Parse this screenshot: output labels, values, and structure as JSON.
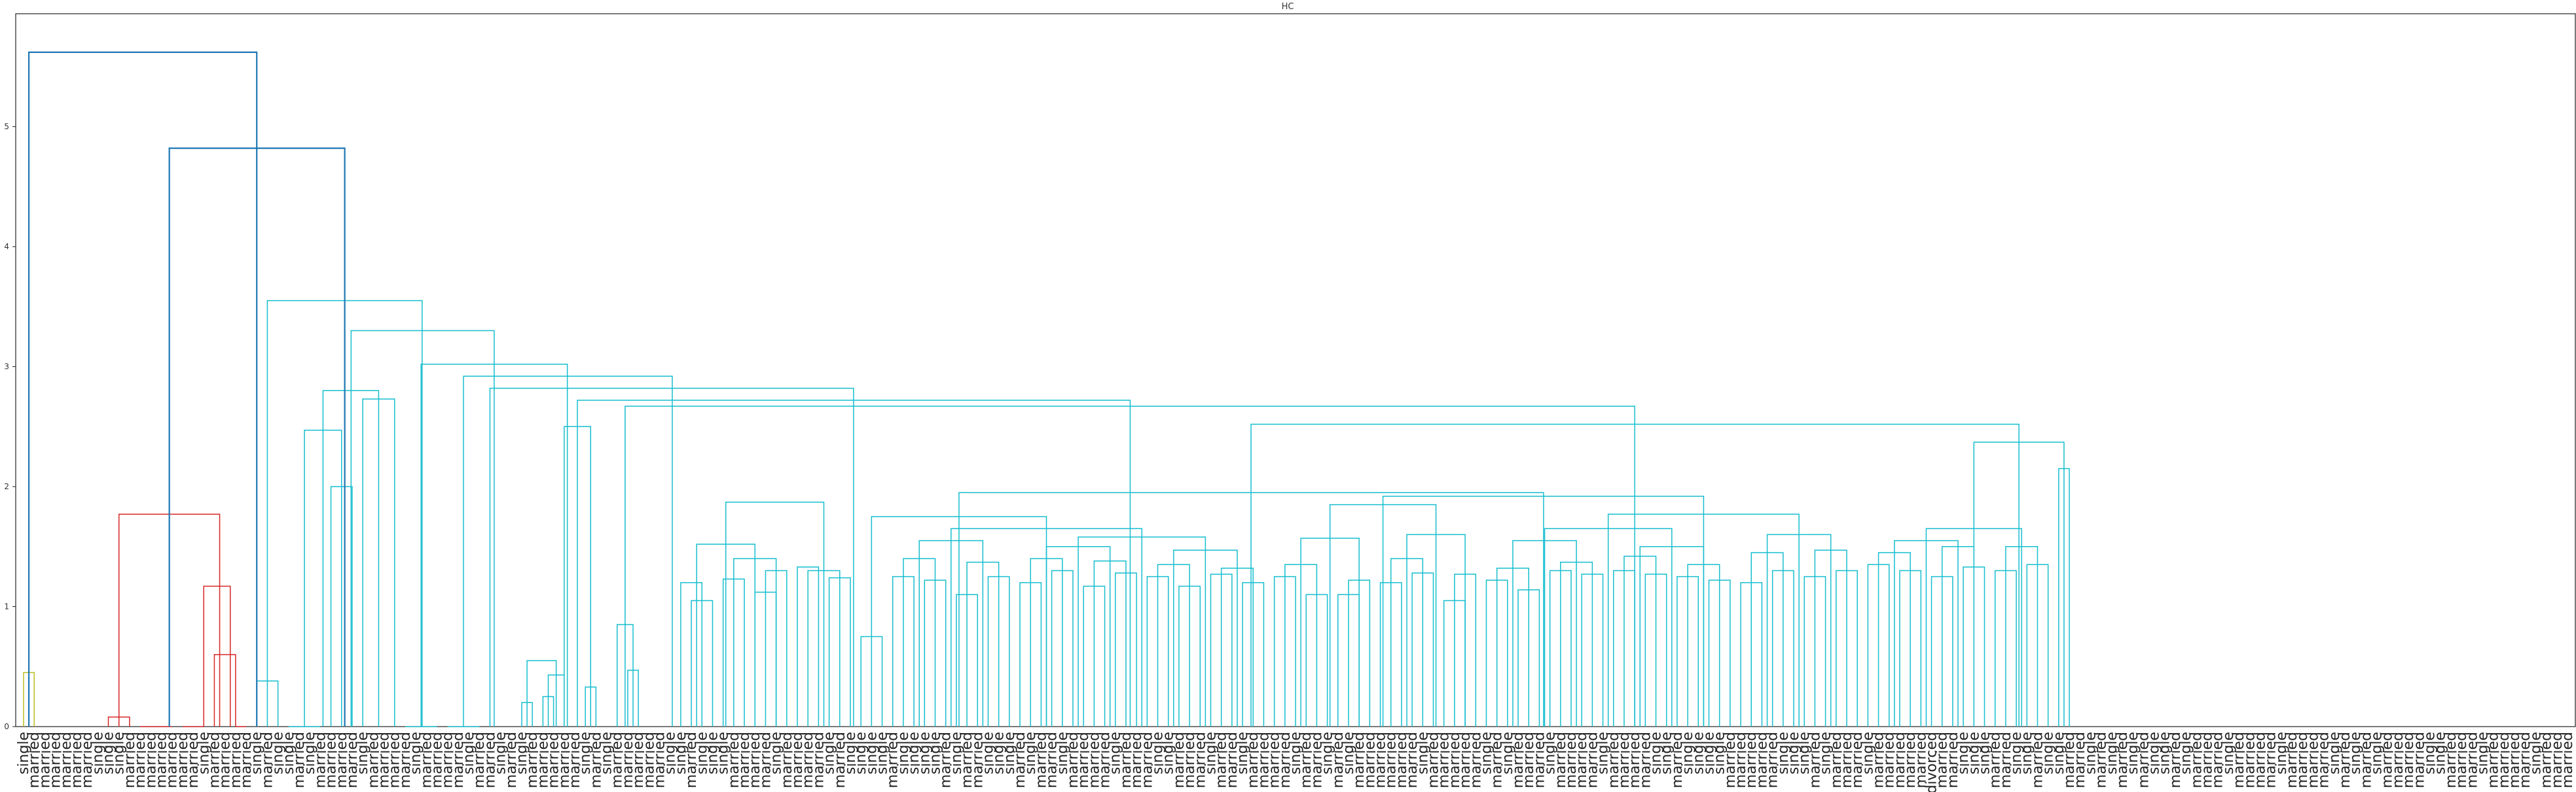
{
  "chart_data": {
    "type": "dendrogram",
    "title": "HC",
    "xlabel": "",
    "ylabel": "",
    "ylim": [
      0,
      5.9
    ],
    "yticks": [
      0,
      1,
      2,
      3,
      4,
      5
    ],
    "grid": false,
    "colors": {
      "cluster_a": "#bcbd22",
      "cluster_b": "#d62728",
      "cluster_c": "#17becf",
      "above_threshold": "#1f77b4"
    },
    "leaf_labels": [
      "single",
      "married",
      "married",
      "married",
      "married",
      "married",
      "married",
      "single",
      "single",
      "single",
      "married",
      "married",
      "married",
      "married",
      "married",
      "married",
      "married",
      "single",
      "married",
      "married",
      "married",
      "married",
      "single",
      "married",
      "single",
      "single",
      "married",
      "single",
      "married",
      "married",
      "married",
      "married",
      "single",
      "married",
      "married",
      "married",
      "married",
      "single",
      "married",
      "married",
      "married",
      "married",
      "single",
      "married",
      "married",
      "single",
      "married",
      "single",
      "married",
      "married",
      "married",
      "married",
      "married",
      "single",
      "married",
      "single",
      "married",
      "married",
      "married",
      "married",
      "married",
      "single",
      "single",
      "married",
      "single",
      "single",
      "single",
      "married",
      "married",
      "married",
      "married",
      "single",
      "married",
      "married",
      "married",
      "married",
      "single",
      "married",
      "single",
      "single",
      "single",
      "single",
      "married",
      "single",
      "single",
      "single",
      "single",
      "married",
      "single",
      "married",
      "married",
      "single",
      "single",
      "single",
      "married",
      "single",
      "married",
      "married",
      "single",
      "married",
      "married",
      "married",
      "married",
      "single",
      "married",
      "married",
      "married",
      "single",
      "single",
      "married",
      "married",
      "married",
      "single",
      "married",
      "married",
      "single",
      "married",
      "married",
      "married",
      "married",
      "single",
      "married",
      "married",
      "single",
      "married",
      "single",
      "married",
      "married",
      "married",
      "married",
      "married",
      "married",
      "single",
      "married",
      "married",
      "married",
      "married",
      "married",
      "single",
      "married",
      "single",
      "married",
      "married",
      "married",
      "single",
      "married",
      "married",
      "married",
      "married",
      "single",
      "married",
      "married",
      "married",
      "married",
      "single",
      "single",
      "married",
      "single",
      "single",
      "single",
      "single",
      "married",
      "married",
      "married",
      "married",
      "married",
      "single",
      "single",
      "single",
      "married",
      "single",
      "married",
      "married",
      "married",
      "single",
      "married",
      "married",
      "married",
      "married",
      "married",
      "divorced",
      "married",
      "married",
      "single",
      "single",
      "single",
      "married",
      "married",
      "single",
      "single",
      "married",
      "single",
      "single",
      "married",
      "married",
      "single",
      "married",
      "single",
      "married",
      "single",
      "married",
      "single",
      "single",
      "married",
      "single",
      "married",
      "married",
      "married",
      "single",
      "married",
      "married",
      "married",
      "married",
      "single",
      "married",
      "married",
      "married",
      "married",
      "single",
      "married",
      "single",
      "married",
      "single",
      "married",
      "married",
      "married",
      "married",
      "single",
      "single",
      "married",
      "married",
      "married",
      "single",
      "married",
      "married",
      "married",
      "married",
      "single",
      "married",
      "married",
      "married"
    ],
    "links": [
      {
        "l": 0,
        "r": 1,
        "h": 0.45,
        "c": "cluster_a"
      },
      {
        "l": 8,
        "r": 10,
        "h": 0.08,
        "c": "cluster_b"
      },
      {
        "l": 11,
        "r": 13,
        "h": 0.0,
        "c": "cluster_b"
      },
      {
        "l": 13,
        "r": 14,
        "h": 0.0,
        "c": "cluster_b"
      },
      {
        "l": 15,
        "r": 16,
        "h": 0.0,
        "c": "cluster_b"
      },
      {
        "l": 16,
        "r": 17,
        "h": 0.0,
        "c": "cluster_b"
      },
      {
        "l": 18,
        "r": 20,
        "h": 0.6,
        "c": "cluster_b"
      },
      {
        "l": 20,
        "r": 21,
        "h": 0.0,
        "c": "cluster_b"
      },
      {
        "l": 17,
        "r": 19.5,
        "h": 1.17,
        "c": "cluster_b"
      },
      {
        "l": 9,
        "r": 18.5,
        "h": 1.77,
        "c": "cluster_b"
      },
      {
        "l": 22,
        "r": 24,
        "h": 0.38,
        "c": "cluster_c"
      },
      {
        "l": 25,
        "r": 28,
        "h": 0.0,
        "c": "cluster_c"
      },
      {
        "l": 29,
        "r": 31,
        "h": 2.0,
        "c": "cluster_c"
      },
      {
        "l": 26.5,
        "r": 30,
        "h": 2.47,
        "c": "cluster_c"
      },
      {
        "l": 32,
        "r": 35,
        "h": 2.73,
        "c": "cluster_c"
      },
      {
        "l": 28.25,
        "r": 33.5,
        "h": 2.8,
        "c": "cluster_c"
      },
      {
        "l": 36,
        "r": 39,
        "h": 0.0,
        "c": "cluster_c"
      },
      {
        "l": 40,
        "r": 43,
        "h": 0.0,
        "c": "cluster_c"
      },
      {
        "l": 47,
        "r": 48,
        "h": 0.2,
        "c": "cluster_c"
      },
      {
        "l": 49,
        "r": 50,
        "h": 0.25,
        "c": "cluster_c"
      },
      {
        "l": 49.5,
        "r": 51,
        "h": 0.43,
        "c": "cluster_c"
      },
      {
        "l": 47.5,
        "r": 50.25,
        "h": 0.55,
        "c": "cluster_c"
      },
      {
        "l": 53,
        "r": 54,
        "h": 0.33,
        "c": "cluster_c"
      },
      {
        "l": 51.0,
        "r": 53.5,
        "h": 2.5,
        "c": "cluster_c"
      },
      {
        "l": 57,
        "r": 58,
        "h": 0.47,
        "c": "cluster_c"
      },
      {
        "l": 56,
        "r": 57.5,
        "h": 0.85,
        "c": "cluster_c"
      },
      {
        "l": 62,
        "r": 64,
        "h": 1.2,
        "c": "cluster_c"
      },
      {
        "l": 63,
        "r": 65,
        "h": 1.05,
        "c": "cluster_c"
      },
      {
        "l": 66,
        "r": 68,
        "h": 1.23,
        "c": "cluster_c"
      },
      {
        "l": 69,
        "r": 71,
        "h": 1.12,
        "c": "cluster_c"
      },
      {
        "l": 70,
        "r": 72,
        "h": 1.3,
        "c": "cluster_c"
      },
      {
        "l": 67,
        "r": 71,
        "h": 1.4,
        "c": "cluster_c"
      },
      {
        "l": 63.5,
        "r": 69,
        "h": 1.52,
        "c": "cluster_c"
      },
      {
        "l": 73,
        "r": 75,
        "h": 1.33,
        "c": "cluster_c"
      },
      {
        "l": 76,
        "r": 78,
        "h": 1.24,
        "c": "cluster_c"
      },
      {
        "l": 74,
        "r": 77,
        "h": 1.3,
        "c": "cluster_c"
      },
      {
        "l": 66.25,
        "r": 75.5,
        "h": 1.87,
        "c": "cluster_c"
      },
      {
        "l": 79,
        "r": 81,
        "h": 0.75,
        "c": "cluster_c"
      },
      {
        "l": 82,
        "r": 84,
        "h": 1.25,
        "c": "cluster_c"
      },
      {
        "l": 85,
        "r": 87,
        "h": 1.22,
        "c": "cluster_c"
      },
      {
        "l": 83,
        "r": 86,
        "h": 1.4,
        "c": "cluster_c"
      },
      {
        "l": 88,
        "r": 90,
        "h": 1.1,
        "c": "cluster_c"
      },
      {
        "l": 91,
        "r": 93,
        "h": 1.25,
        "c": "cluster_c"
      },
      {
        "l": 89,
        "r": 92,
        "h": 1.37,
        "c": "cluster_c"
      },
      {
        "l": 84.5,
        "r": 90.5,
        "h": 1.55,
        "c": "cluster_c"
      },
      {
        "l": 94,
        "r": 96,
        "h": 1.2,
        "c": "cluster_c"
      },
      {
        "l": 97,
        "r": 99,
        "h": 1.3,
        "c": "cluster_c"
      },
      {
        "l": 95,
        "r": 98,
        "h": 1.4,
        "c": "cluster_c"
      },
      {
        "l": 100,
        "r": 102,
        "h": 1.17,
        "c": "cluster_c"
      },
      {
        "l": 103,
        "r": 105,
        "h": 1.28,
        "c": "cluster_c"
      },
      {
        "l": 101,
        "r": 104,
        "h": 1.38,
        "c": "cluster_c"
      },
      {
        "l": 96.5,
        "r": 102.5,
        "h": 1.5,
        "c": "cluster_c"
      },
      {
        "l": 106,
        "r": 108,
        "h": 1.25,
        "c": "cluster_c"
      },
      {
        "l": 109,
        "r": 111,
        "h": 1.17,
        "c": "cluster_c"
      },
      {
        "l": 107,
        "r": 110,
        "h": 1.35,
        "c": "cluster_c"
      },
      {
        "l": 112,
        "r": 114,
        "h": 1.27,
        "c": "cluster_c"
      },
      {
        "l": 115,
        "r": 117,
        "h": 1.2,
        "c": "cluster_c"
      },
      {
        "l": 113,
        "r": 116,
        "h": 1.32,
        "c": "cluster_c"
      },
      {
        "l": 108.5,
        "r": 114.5,
        "h": 1.47,
        "c": "cluster_c"
      },
      {
        "l": 99.5,
        "r": 111.5,
        "h": 1.58,
        "c": "cluster_c"
      },
      {
        "l": 87.5,
        "r": 105.5,
        "h": 1.65,
        "c": "cluster_c"
      },
      {
        "l": 80,
        "r": 96.5,
        "h": 1.75,
        "c": "cluster_c"
      },
      {
        "l": 118,
        "r": 120,
        "h": 1.25,
        "c": "cluster_c"
      },
      {
        "l": 121,
        "r": 123,
        "h": 1.1,
        "c": "cluster_c"
      },
      {
        "l": 119,
        "r": 122,
        "h": 1.35,
        "c": "cluster_c"
      },
      {
        "l": 124,
        "r": 126,
        "h": 1.1,
        "c": "cluster_c"
      },
      {
        "l": 125,
        "r": 127,
        "h": 1.22,
        "c": "cluster_c"
      },
      {
        "l": 120.5,
        "r": 126,
        "h": 1.57,
        "c": "cluster_c"
      },
      {
        "l": 128,
        "r": 130,
        "h": 1.2,
        "c": "cluster_c"
      },
      {
        "l": 131,
        "r": 133,
        "h": 1.28,
        "c": "cluster_c"
      },
      {
        "l": 129,
        "r": 132,
        "h": 1.4,
        "c": "cluster_c"
      },
      {
        "l": 134,
        "r": 136,
        "h": 1.05,
        "c": "cluster_c"
      },
      {
        "l": 135,
        "r": 137,
        "h": 1.27,
        "c": "cluster_c"
      },
      {
        "l": 130.5,
        "r": 136,
        "h": 1.6,
        "c": "cluster_c"
      },
      {
        "l": 123.25,
        "r": 133.25,
        "h": 1.85,
        "c": "cluster_c"
      },
      {
        "l": 138,
        "r": 140,
        "h": 1.22,
        "c": "cluster_c"
      },
      {
        "l": 141,
        "r": 143,
        "h": 1.14,
        "c": "cluster_c"
      },
      {
        "l": 139,
        "r": 142,
        "h": 1.32,
        "c": "cluster_c"
      },
      {
        "l": 144,
        "r": 146,
        "h": 1.3,
        "c": "cluster_c"
      },
      {
        "l": 147,
        "r": 149,
        "h": 1.27,
        "c": "cluster_c"
      },
      {
        "l": 145,
        "r": 148,
        "h": 1.37,
        "c": "cluster_c"
      },
      {
        "l": 140.5,
        "r": 146.5,
        "h": 1.55,
        "c": "cluster_c"
      },
      {
        "l": 150,
        "r": 152,
        "h": 1.3,
        "c": "cluster_c"
      },
      {
        "l": 153,
        "r": 155,
        "h": 1.27,
        "c": "cluster_c"
      },
      {
        "l": 151,
        "r": 154,
        "h": 1.42,
        "c": "cluster_c"
      },
      {
        "l": 156,
        "r": 158,
        "h": 1.25,
        "c": "cluster_c"
      },
      {
        "l": 159,
        "r": 161,
        "h": 1.22,
        "c": "cluster_c"
      },
      {
        "l": 157,
        "r": 160,
        "h": 1.35,
        "c": "cluster_c"
      },
      {
        "l": 152.5,
        "r": 158.5,
        "h": 1.5,
        "c": "cluster_c"
      },
      {
        "l": 143.5,
        "r": 155.5,
        "h": 1.65,
        "c": "cluster_c"
      },
      {
        "l": 162,
        "r": 164,
        "h": 1.2,
        "c": "cluster_c"
      },
      {
        "l": 165,
        "r": 167,
        "h": 1.3,
        "c": "cluster_c"
      },
      {
        "l": 163,
        "r": 166,
        "h": 1.45,
        "c": "cluster_c"
      },
      {
        "l": 168,
        "r": 170,
        "h": 1.25,
        "c": "cluster_c"
      },
      {
        "l": 171,
        "r": 173,
        "h": 1.3,
        "c": "cluster_c"
      },
      {
        "l": 169,
        "r": 172,
        "h": 1.47,
        "c": "cluster_c"
      },
      {
        "l": 164.5,
        "r": 170.5,
        "h": 1.6,
        "c": "cluster_c"
      },
      {
        "l": 149.5,
        "r": 167.5,
        "h": 1.77,
        "c": "cluster_c"
      },
      {
        "l": 128.25,
        "r": 158.5,
        "h": 1.92,
        "c": "cluster_c"
      },
      {
        "l": 88.25,
        "r": 143.4,
        "h": 1.95,
        "c": "cluster_c"
      },
      {
        "l": 174,
        "r": 176,
        "h": 1.35,
        "c": "cluster_c"
      },
      {
        "l": 177,
        "r": 179,
        "h": 1.3,
        "c": "cluster_c"
      },
      {
        "l": 175,
        "r": 178,
        "h": 1.45,
        "c": "cluster_c"
      },
      {
        "l": 180,
        "r": 182,
        "h": 1.25,
        "c": "cluster_c"
      },
      {
        "l": 183,
        "r": 185,
        "h": 1.33,
        "c": "cluster_c"
      },
      {
        "l": 181,
        "r": 184,
        "h": 1.5,
        "c": "cluster_c"
      },
      {
        "l": 176.5,
        "r": 182.5,
        "h": 1.55,
        "c": "cluster_c"
      },
      {
        "l": 186,
        "r": 188,
        "h": 1.3,
        "c": "cluster_c"
      },
      {
        "l": 189,
        "r": 191,
        "h": 1.35,
        "c": "cluster_c"
      },
      {
        "l": 187,
        "r": 190,
        "h": 1.5,
        "c": "cluster_c"
      },
      {
        "l": 179.5,
        "r": 188.5,
        "h": 1.65,
        "c": "cluster_c"
      },
      {
        "l": 192,
        "r": 193,
        "h": 2.15,
        "c": "cluster_c"
      },
      {
        "l": 184,
        "r": 192.5,
        "h": 2.37,
        "c": "cluster_c"
      },
      {
        "l": 115.8,
        "r": 188.25,
        "h": 2.52,
        "c": "cluster_c"
      },
      {
        "l": 56.75,
        "r": 152.0,
        "h": 2.67,
        "c": "cluster_c"
      },
      {
        "l": 52.25,
        "r": 104.4,
        "h": 2.72,
        "c": "cluster_c"
      },
      {
        "l": 44,
        "r": 78.3,
        "h": 2.82,
        "c": "cluster_c"
      },
      {
        "l": 41.5,
        "r": 61.2,
        "h": 2.92,
        "c": "cluster_c"
      },
      {
        "l": 37.5,
        "r": 51.3,
        "h": 3.02,
        "c": "cluster_c"
      },
      {
        "l": 30.9,
        "r": 44.4,
        "h": 3.3,
        "c": "cluster_c"
      },
      {
        "l": 23,
        "r": 37.6,
        "h": 3.55,
        "c": "cluster_c"
      },
      {
        "l": 13.75,
        "r": 30.3,
        "h": 4.82,
        "c": "above_threshold"
      },
      {
        "l": 0.5,
        "r": 22.0,
        "h": 5.62,
        "c": "above_threshold"
      }
    ]
  }
}
